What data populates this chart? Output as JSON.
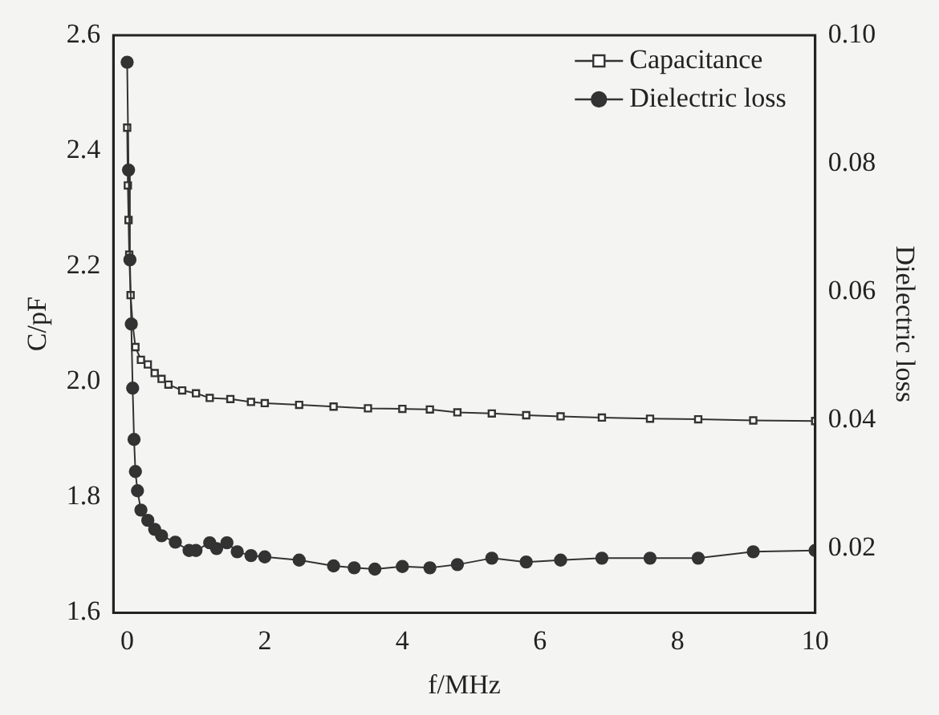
{
  "chart_data": {
    "type": "line",
    "xlabel": "f/MHz",
    "ylabel": "C/pF",
    "y2label": "Dielectric loss",
    "xlim": [
      -0.2,
      10
    ],
    "xticks": [
      0,
      2,
      4,
      6,
      8,
      10
    ],
    "ylim": [
      1.6,
      2.6
    ],
    "yticks": [
      1.6,
      1.8,
      {
        "value": 2,
        "label": "2.0"
      },
      2.2,
      2.4,
      2.6
    ],
    "y2lim": [
      0.01,
      0.1
    ],
    "y2ticks": [
      0.02,
      0.04,
      0.06,
      0.08,
      {
        "value": 0.1,
        "label": "0.10"
      }
    ],
    "grid": false,
    "legend": "top right",
    "line_style": "solid",
    "series": [
      {
        "name": "Capacitance",
        "color": "#333333",
        "marker": "square",
        "axis": "y",
        "x": [
          0,
          0.01,
          0.02,
          0.03,
          0.05,
          0.08,
          0.12,
          0.2,
          0.3,
          0.4,
          0.5,
          0.6,
          0.8,
          1.0,
          1.2,
          1.5,
          1.8,
          2.0,
          2.5,
          3.0,
          3.5,
          4.0,
          4.4,
          4.8,
          5.3,
          5.8,
          6.3,
          6.9,
          7.6,
          8.3,
          9.1,
          10
        ],
        "values": [
          2.44,
          2.34,
          2.28,
          2.22,
          2.15,
          2.1,
          2.06,
          2.038,
          2.03,
          2.015,
          2.005,
          1.995,
          1.985,
          1.98,
          1.972,
          1.97,
          1.965,
          1.963,
          1.96,
          1.957,
          1.954,
          1.953,
          1.952,
          1.947,
          1.945,
          1.942,
          1.94,
          1.938,
          1.936,
          1.935,
          1.933,
          1.932
        ]
      },
      {
        "name": "Dielectric loss",
        "color": "#333333",
        "marker": "circle",
        "axis": "y2",
        "x": [
          0,
          0.02,
          0.04,
          0.06,
          0.08,
          0.1,
          0.12,
          0.15,
          0.2,
          0.3,
          0.4,
          0.5,
          0.7,
          0.9,
          1.0,
          1.2,
          1.3,
          1.45,
          1.6,
          1.8,
          2.0,
          2.5,
          3.0,
          3.3,
          3.6,
          4.0,
          4.4,
          4.8,
          5.3,
          5.8,
          6.3,
          6.9,
          7.6,
          8.3,
          9.1,
          10
        ],
        "values": [
          0.0958,
          0.079,
          0.065,
          0.055,
          0.045,
          0.037,
          0.032,
          0.029,
          0.026,
          0.0244,
          0.023,
          0.022,
          0.021,
          0.0197,
          0.0197,
          0.0209,
          0.02,
          0.0209,
          0.0195,
          0.0189,
          0.0187,
          0.0182,
          0.0173,
          0.017,
          0.0168,
          0.0172,
          0.017,
          0.0175,
          0.0185,
          0.0179,
          0.0182,
          0.0185,
          0.0185,
          0.0185,
          0.0195,
          0.0197
        ]
      }
    ]
  }
}
